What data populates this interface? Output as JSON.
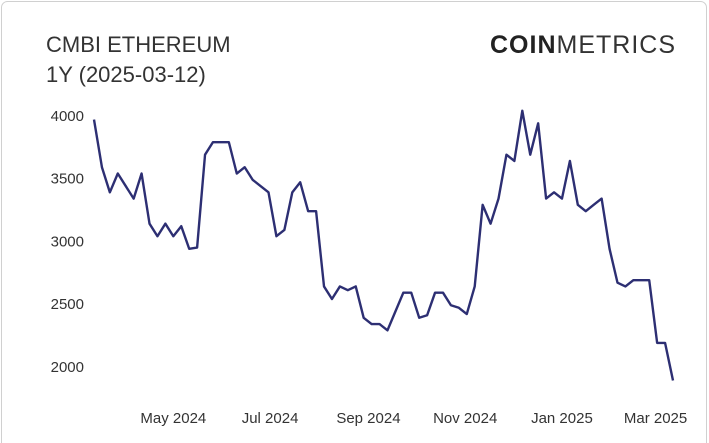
{
  "chart_data": {
    "type": "line",
    "title": "CMBI ETHEREUM",
    "subtitle": "1Y (2025-03-12)",
    "logo": {
      "bold": "COIN",
      "light": "METRICS"
    },
    "series": [
      {
        "name": "CMBI Ethereum",
        "color": "#2d2f73",
        "values": [
          3980,
          3600,
          3400,
          3550,
          3450,
          3350,
          3550,
          3150,
          3050,
          3150,
          3050,
          3130,
          2950,
          2960,
          3700,
          3800,
          3800,
          3800,
          3550,
          3600,
          3500,
          3450,
          3400,
          3050,
          3100,
          3400,
          3480,
          3250,
          3250,
          2650,
          2550,
          2650,
          2620,
          2650,
          2400,
          2350,
          2350,
          2300,
          2450,
          2600,
          2600,
          2400,
          2420,
          2600,
          2600,
          2500,
          2480,
          2430,
          2650,
          3300,
          3150,
          3350,
          3700,
          3650,
          4050,
          3700,
          3950,
          3350,
          3400,
          3350,
          3650,
          3300,
          3250,
          3300,
          3350,
          2950,
          2680,
          2650,
          2700,
          2700,
          2700,
          2200,
          2200,
          1900
        ]
      }
    ],
    "xlim": [
      0,
      73
    ],
    "xticks": [
      {
        "value": 10,
        "label": "May 2024"
      },
      {
        "value": 22.2,
        "label": "Jul 2024"
      },
      {
        "value": 34.6,
        "label": "Sep 2024"
      },
      {
        "value": 46.8,
        "label": "Nov 2024"
      },
      {
        "value": 59,
        "label": "Jan 2025"
      },
      {
        "value": 70.8,
        "label": "Mar 2025"
      }
    ],
    "ylim": [
      1850,
      4100
    ],
    "yticks": [
      2000,
      2500,
      3000,
      3500,
      4000
    ],
    "grid": false
  }
}
